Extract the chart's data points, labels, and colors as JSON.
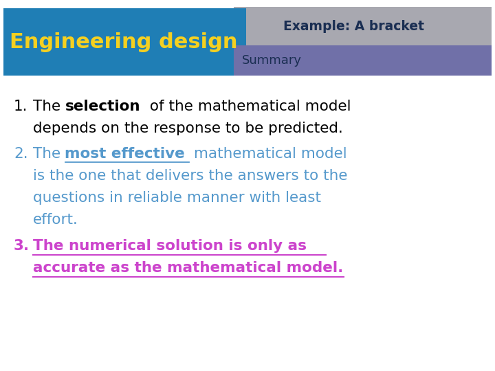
{
  "bg_color": "#ffffff",
  "header_box1_color": "#1f7eb5",
  "header_box1_text": "Engineering design",
  "header_box1_text_color": "#f5d020",
  "header_box2_color": "#a8a8b0",
  "header_box2_text": "Example: A bracket",
  "header_box2_text_color": "#1a2e52",
  "header_box3_color": "#7070a8",
  "header_box3_text": "Summary",
  "header_box3_text_color": "#1a2e52",
  "body_color_1": "#000000",
  "body_color_2": "#5599cc",
  "body_color_3": "#cc44cc",
  "font_size_body": 15.5
}
